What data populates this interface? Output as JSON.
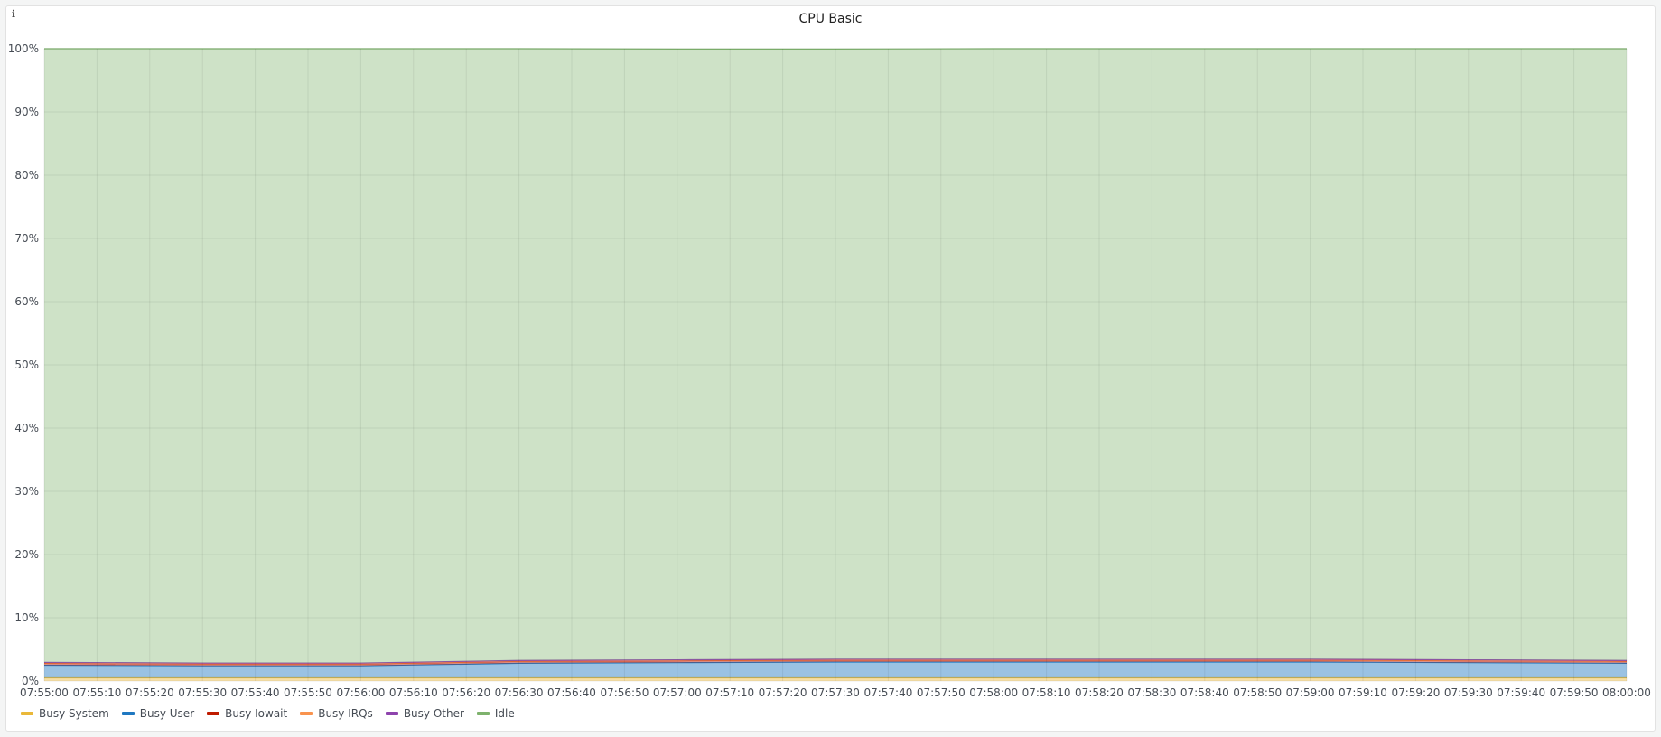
{
  "panel": {
    "title": "CPU Basic",
    "info_icon": "info-icon"
  },
  "chart_data": {
    "type": "area",
    "stacked": true,
    "title": "CPU Basic",
    "xlabel": "",
    "ylabel": "",
    "ylim": [
      0,
      100
    ],
    "y_ticks": [
      "0%",
      "10%",
      "20%",
      "30%",
      "40%",
      "50%",
      "60%",
      "70%",
      "80%",
      "90%",
      "100%"
    ],
    "x_ticks": [
      "07:55:00",
      "07:55:10",
      "07:55:20",
      "07:55:30",
      "07:55:40",
      "07:55:50",
      "07:56:00",
      "07:56:10",
      "07:56:20",
      "07:56:30",
      "07:56:40",
      "07:56:50",
      "07:57:00",
      "07:57:10",
      "07:57:20",
      "07:57:30",
      "07:57:40",
      "07:57:50",
      "07:58:00",
      "07:58:10",
      "07:58:20",
      "07:58:30",
      "07:58:40",
      "07:58:50",
      "07:59:00",
      "07:59:10",
      "07:59:20",
      "07:59:30",
      "07:59:40",
      "07:59:50",
      "08:00:00"
    ],
    "x": [
      "07:55:00",
      "07:55:30",
      "07:56:00",
      "07:56:30",
      "07:57:00",
      "07:57:30",
      "07:58:00",
      "07:58:30",
      "07:59:00",
      "07:59:30",
      "08:00:00"
    ],
    "grid": true,
    "legend_position": "bottom-left",
    "series": [
      {
        "name": "Busy System",
        "color": "#eab839",
        "values": [
          0.5,
          0.5,
          0.5,
          0.5,
          0.5,
          0.5,
          0.5,
          0.5,
          0.5,
          0.5,
          0.5
        ]
      },
      {
        "name": "Busy User",
        "color": "#1f78c1",
        "values": [
          2.0,
          1.9,
          1.9,
          2.3,
          2.4,
          2.5,
          2.5,
          2.5,
          2.5,
          2.4,
          2.3
        ]
      },
      {
        "name": "Busy Iowait",
        "color": "#bf1b00",
        "values": [
          0.3,
          0.3,
          0.3,
          0.3,
          0.3,
          0.3,
          0.3,
          0.3,
          0.3,
          0.3,
          0.3
        ]
      },
      {
        "name": "Busy IRQs",
        "color": "#f9934e",
        "values": [
          0.05,
          0.05,
          0.05,
          0.05,
          0.05,
          0.05,
          0.05,
          0.05,
          0.05,
          0.05,
          0.05
        ]
      },
      {
        "name": "Busy Other",
        "color": "#8e44ad",
        "values": [
          0.1,
          0.1,
          0.1,
          0.1,
          0.1,
          0.1,
          0.1,
          0.1,
          0.1,
          0.1,
          0.1
        ]
      },
      {
        "name": "Idle",
        "color": "#7eb26d",
        "values": [
          97.05,
          97.15,
          97.15,
          96.75,
          96.6,
          96.5,
          96.55,
          96.55,
          96.55,
          96.65,
          96.75
        ]
      }
    ]
  },
  "legend": [
    {
      "label": "Busy System",
      "color": "#eab839"
    },
    {
      "label": "Busy User",
      "color": "#1f78c1"
    },
    {
      "label": "Busy Iowait",
      "color": "#bf1b00"
    },
    {
      "label": "Busy IRQs",
      "color": "#f9934e"
    },
    {
      "label": "Busy Other",
      "color": "#8e44ad"
    },
    {
      "label": "Idle",
      "color": "#7eb26d"
    }
  ]
}
